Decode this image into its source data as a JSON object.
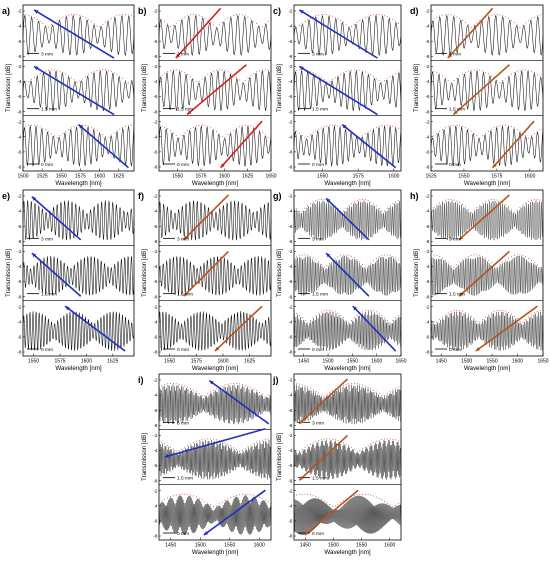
{
  "figure": {
    "ylabel": "Transmisson [dB]",
    "xlabel": "Wavelength [nm]",
    "panels": [
      {
        "letter": "a)",
        "xticks": [
          1500,
          1525,
          1550,
          1575,
          1600,
          1625
        ],
        "scales": [
          "3 mm",
          "1.5 mm",
          "0 mm"
        ],
        "yticks": [
          "-2",
          "-4",
          "-6",
          "-8"
        ],
        "arrow_color": "#1f2fbf",
        "arrows": [
          [
            0.1,
            0.03,
            0.82,
            0.32
          ],
          [
            0.1,
            0.37,
            0.82,
            0.66
          ],
          [
            0.5,
            0.72,
            0.95,
            0.98
          ]
        ],
        "fringes": 16,
        "env": 2.2,
        "dots": true
      },
      {
        "letter": "b)",
        "xticks": [
          1550,
          1575,
          1600,
          1625,
          1650
        ],
        "scales": [
          "3 mm",
          "1.5 mm",
          "0 mm"
        ],
        "yticks": [
          "-2",
          "-4",
          "-6",
          "-8"
        ],
        "arrow_color": "#d62020",
        "arrows": [
          [
            0.15,
            0.32,
            0.55,
            0.02
          ],
          [
            0.25,
            0.66,
            0.78,
            0.36
          ],
          [
            0.55,
            0.98,
            0.92,
            0.7
          ]
        ],
        "fringes": 16,
        "env": 2.5,
        "dots": true
      },
      {
        "letter": "c)",
        "xticks": [
          1550,
          1575,
          1600
        ],
        "scales": [
          "3 mm",
          "1.5 mm",
          "0 mm"
        ],
        "yticks": [
          "-2",
          "-4",
          "-6",
          "-8"
        ],
        "arrow_color": "#1f2fbf",
        "arrows": [
          [
            0.05,
            0.03,
            0.78,
            0.32
          ],
          [
            0.05,
            0.37,
            0.78,
            0.66
          ],
          [
            0.45,
            0.72,
            0.95,
            0.98
          ]
        ],
        "fringes": 16,
        "env": 2.0,
        "dots": true
      },
      {
        "letter": "d)",
        "xticks": [
          1525,
          1550,
          1575,
          1600
        ],
        "scales": [
          "3 mm",
          "1.5 mm",
          "0 mm"
        ],
        "yticks": [
          "-2",
          "-4",
          "-6",
          "-8"
        ],
        "arrow_color": "#b5541e",
        "arrows": [
          [
            0.15,
            0.32,
            0.55,
            0.02
          ],
          [
            0.2,
            0.66,
            0.7,
            0.36
          ],
          [
            0.55,
            0.98,
            0.92,
            0.7
          ]
        ],
        "fringes": 16,
        "env": 2.3,
        "dots": true
      },
      {
        "letter": "e)",
        "xticks": [
          1550,
          1575,
          1600,
          1625
        ],
        "scales": [
          "3 mm",
          "1.5 mm",
          "0 mm"
        ],
        "yticks": [
          "-2",
          "-4",
          "-6",
          "-8"
        ],
        "arrow_color": "#1f2fbf",
        "arrows": [
          [
            0.08,
            0.04,
            0.52,
            0.3
          ],
          [
            0.08,
            0.38,
            0.52,
            0.64
          ],
          [
            0.38,
            0.7,
            0.92,
            0.97
          ]
        ],
        "fringes": 30,
        "env": 2.8,
        "dots": false
      },
      {
        "letter": "f)",
        "xticks": [
          1550,
          1575,
          1600,
          1625
        ],
        "scales": [
          "3 mm",
          "1.5 mm",
          "0 mm"
        ],
        "yticks": [
          "-2",
          "-4",
          "-6",
          "-8"
        ],
        "arrow_color": "#b5541e",
        "arrows": [
          [
            0.22,
            0.3,
            0.62,
            0.03
          ],
          [
            0.22,
            0.64,
            0.62,
            0.37
          ],
          [
            0.5,
            0.97,
            0.92,
            0.7
          ]
        ],
        "fringes": 30,
        "env": 2.8,
        "dots": false
      },
      {
        "letter": "g)",
        "xticks": [
          1450,
          1500,
          1550,
          1600,
          1650
        ],
        "scales": [
          "3 mm",
          "1.5 mm",
          "0 mm"
        ],
        "yticks": [
          "-2",
          "-4",
          "-6",
          "-8"
        ],
        "arrow_color": "#1f2fbf",
        "arrows": [
          [
            0.3,
            0.05,
            0.7,
            0.3
          ],
          [
            0.3,
            0.38,
            0.7,
            0.64
          ],
          [
            0.55,
            0.7,
            0.95,
            0.97
          ]
        ],
        "fringes": 60,
        "env": 2.6,
        "dots": true
      },
      {
        "letter": "h)",
        "xticks": [
          1450,
          1500,
          1550,
          1600,
          1650
        ],
        "scales": [
          "3 mm",
          "1.5 mm",
          "0 mm"
        ],
        "yticks": [
          "-2",
          "-4",
          "-6",
          "-8"
        ],
        "arrow_color": "#b5541e",
        "arrows": [
          [
            0.25,
            0.3,
            0.7,
            0.03
          ],
          [
            0.25,
            0.64,
            0.7,
            0.37
          ],
          [
            0.4,
            0.97,
            0.95,
            0.7
          ]
        ],
        "fringes": 60,
        "env": 2.6,
        "dots": true
      },
      {
        "letter": "i)",
        "xticks": [
          1450,
          1500,
          1550,
          1600
        ],
        "scales": [
          "3 mm",
          "1.5 mm",
          "0 mm"
        ],
        "yticks": [
          "-2",
          "-4",
          "-6",
          "-8"
        ],
        "arrow_color": "#1f2fbf",
        "arrows": [
          [
            0.45,
            0.04,
            0.98,
            0.3
          ],
          [
            0.05,
            0.5,
            0.95,
            0.33
          ],
          [
            0.4,
            0.97,
            0.95,
            0.7
          ]
        ],
        "fringes": 90,
        "env": 1.8,
        "dots": true
      },
      {
        "letter": "j)",
        "xticks": [
          1450,
          1500,
          1550,
          1600
        ],
        "scales": [
          "3 mm",
          "1.5 mm",
          "0 mm"
        ],
        "yticks": [
          "-2",
          "-4",
          "-6",
          "-8"
        ],
        "arrow_color": "#b5541e",
        "arrows": [
          [
            0.05,
            0.3,
            0.5,
            0.03
          ],
          [
            0.05,
            0.64,
            0.5,
            0.37
          ],
          [
            0.1,
            0.97,
            0.6,
            0.7
          ]
        ],
        "fringes": 90,
        "env": 1.8,
        "dots": true
      }
    ]
  },
  "chart_data": {
    "type": "line",
    "title": "",
    "xlabel": "Wavelength [nm]",
    "ylabel": "Transmisson [dB]",
    "series_labels": [
      "3 mm",
      "1.5 mm",
      "0 mm"
    ],
    "ylim": [
      -10,
      -1
    ],
    "grid": false,
    "legend": "none",
    "panels": [
      {
        "id": "a)",
        "xlim": [
          1500,
          1645
        ]
      },
      {
        "id": "b)",
        "xlim": [
          1530,
          1650
        ]
      },
      {
        "id": "c)",
        "xlim": [
          1530,
          1605
        ]
      },
      {
        "id": "d)",
        "xlim": [
          1525,
          1610
        ]
      },
      {
        "id": "e)",
        "xlim": [
          1540,
          1645
        ]
      },
      {
        "id": "f)",
        "xlim": [
          1540,
          1645
        ]
      },
      {
        "id": "g)",
        "xlim": [
          1430,
          1650
        ]
      },
      {
        "id": "h)",
        "xlim": [
          1430,
          1650
        ]
      },
      {
        "id": "i)",
        "xlim": [
          1430,
          1620
        ]
      },
      {
        "id": "j)",
        "xlim": [
          1430,
          1620
        ]
      }
    ]
  }
}
